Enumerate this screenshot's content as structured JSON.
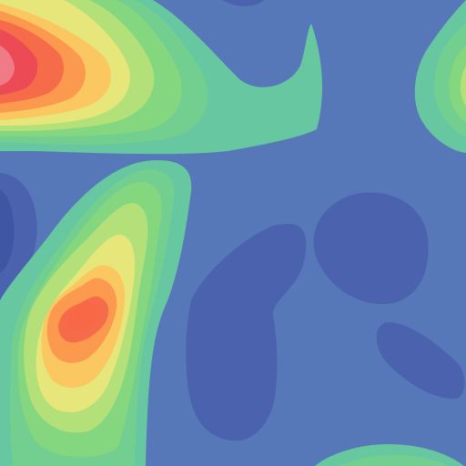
{
  "chart_data": {
    "type": "heatmap",
    "style": "filled-contour",
    "title": "",
    "xlabel": "",
    "ylabel": "",
    "axes_visible": false,
    "colorbar_visible": false,
    "grid": false,
    "colormap": "Spectral_r",
    "background_color": "#5677b8",
    "levels": [
      {
        "name": "level-low-1",
        "color": "#4b63ae"
      },
      {
        "name": "level-low-2",
        "color": "#4b63ae"
      },
      {
        "name": "level-base",
        "color": "#5677b8"
      },
      {
        "name": "level-green-1",
        "color": "#67c7a0"
      },
      {
        "name": "level-green-2",
        "color": "#73cf8f"
      },
      {
        "name": "level-green-3",
        "color": "#84d77f"
      },
      {
        "name": "level-yellow-1",
        "color": "#b4e07a"
      },
      {
        "name": "level-yellow-2",
        "color": "#e6e67a"
      },
      {
        "name": "level-orange-1",
        "color": "#fbc760"
      },
      {
        "name": "level-orange-2",
        "color": "#fb9a4e"
      },
      {
        "name": "level-red-1",
        "color": "#f66b4a"
      },
      {
        "name": "level-red-2",
        "color": "#ec4a55"
      },
      {
        "name": "level-peak",
        "color": "#ef7b87"
      }
    ],
    "features": [
      {
        "name": "peak-top-left",
        "kind": "maximum",
        "location": "top-left"
      },
      {
        "name": "peak-center-left",
        "kind": "maximum",
        "location": "center-left"
      },
      {
        "name": "rise-right-edge",
        "kind": "local-high",
        "location": "top-right"
      },
      {
        "name": "rise-bottom-center",
        "kind": "local-high",
        "location": "bottom"
      },
      {
        "name": "trough-left-edge",
        "kind": "minimum",
        "location": "left"
      },
      {
        "name": "trough-center",
        "kind": "minimum",
        "location": "center"
      },
      {
        "name": "trough-right",
        "kind": "minimum",
        "location": "center-right"
      },
      {
        "name": "trough-lower-right",
        "kind": "minimum",
        "location": "lower-right"
      }
    ]
  }
}
